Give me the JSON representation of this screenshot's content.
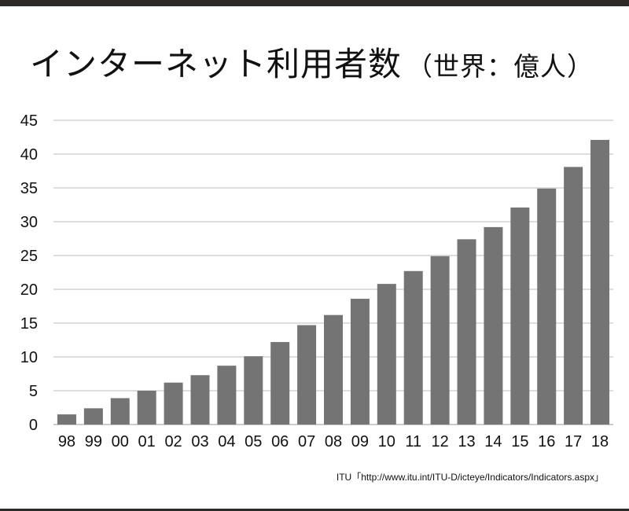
{
  "header": {
    "title": "インターネット利用者数",
    "subtitle": "（世界：億人）"
  },
  "source": {
    "text": "ITU「http://www.itu.int/ITU-D/icteye/Indicators/Indicators.aspx」"
  },
  "colors": {
    "bar": "#747474",
    "grid": "#bdbdbd",
    "frame": "#2e2a28",
    "text": "#111111"
  },
  "chart_data": {
    "type": "bar",
    "title": "インターネット利用者数（世界：億人）",
    "xlabel": "",
    "ylabel": "",
    "ylim": [
      0,
      45
    ],
    "yticks": [
      0,
      5,
      10,
      15,
      20,
      25,
      30,
      35,
      40,
      45
    ],
    "grid": true,
    "categories": [
      "98",
      "99",
      "00",
      "01",
      "02",
      "03",
      "04",
      "05",
      "06",
      "07",
      "08",
      "09",
      "10",
      "11",
      "12",
      "13",
      "14",
      "15",
      "16",
      "17",
      "18"
    ],
    "values": [
      1.5,
      2.4,
      3.9,
      5.0,
      6.2,
      7.3,
      8.7,
      10.1,
      12.2,
      14.7,
      16.2,
      18.6,
      20.8,
      22.7,
      24.9,
      27.4,
      29.2,
      32.1,
      34.9,
      38.1,
      42.1
    ]
  }
}
